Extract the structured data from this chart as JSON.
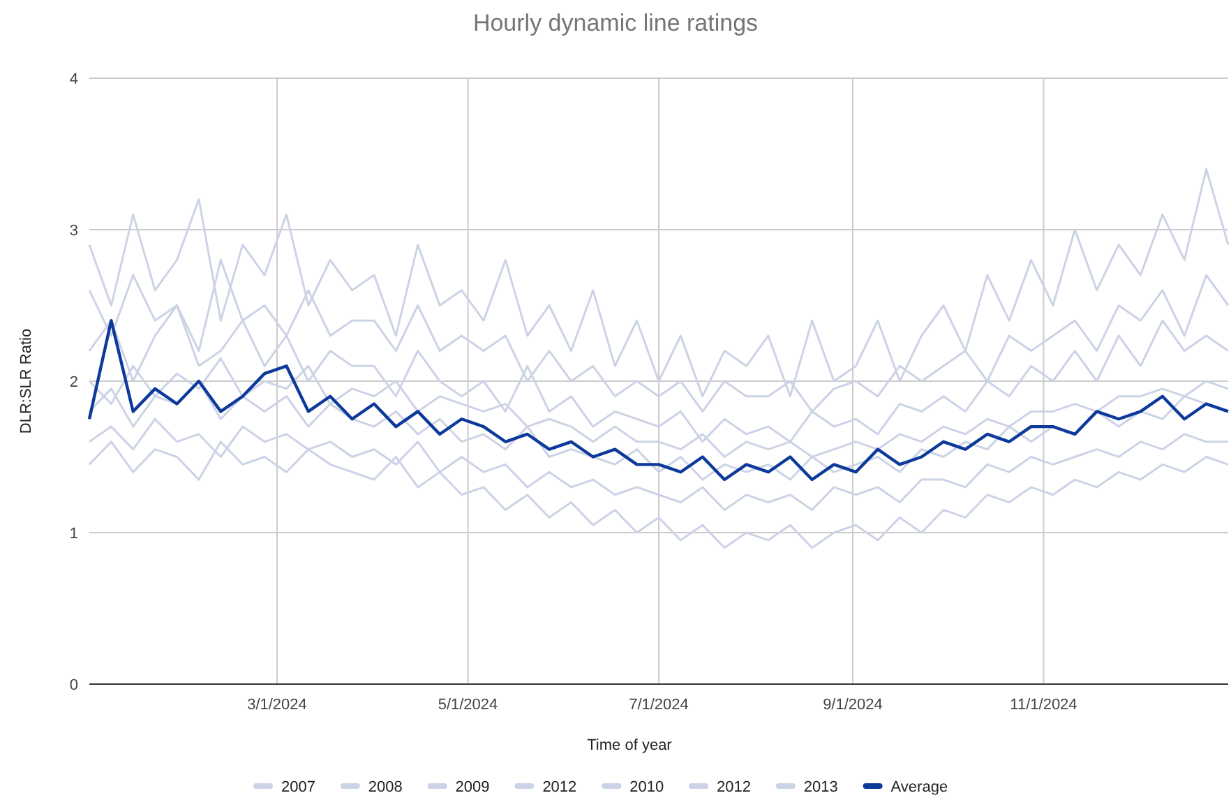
{
  "chart_data": {
    "type": "line",
    "title": "Hourly dynamic line ratings",
    "xlabel": "Time of year",
    "ylabel": "DLR:SLR Ratio",
    "x": [
      "2024-01-01",
      "2024-01-08",
      "2024-01-15",
      "2024-01-22",
      "2024-01-29",
      "2024-02-05",
      "2024-02-12",
      "2024-02-19",
      "2024-02-26",
      "2024-03-04",
      "2024-03-11",
      "2024-03-18",
      "2024-03-25",
      "2024-04-01",
      "2024-04-08",
      "2024-04-15",
      "2024-04-22",
      "2024-04-29",
      "2024-05-06",
      "2024-05-13",
      "2024-05-20",
      "2024-05-27",
      "2024-06-03",
      "2024-06-10",
      "2024-06-17",
      "2024-06-24",
      "2024-07-01",
      "2024-07-08",
      "2024-07-15",
      "2024-07-22",
      "2024-07-29",
      "2024-08-05",
      "2024-08-12",
      "2024-08-19",
      "2024-08-26",
      "2024-09-02",
      "2024-09-09",
      "2024-09-16",
      "2024-09-23",
      "2024-09-30",
      "2024-10-07",
      "2024-10-14",
      "2024-10-21",
      "2024-10-28",
      "2024-11-04",
      "2024-11-11",
      "2024-11-18",
      "2024-11-25",
      "2024-12-02",
      "2024-12-09",
      "2024-12-16",
      "2024-12-23",
      "2024-12-30"
    ],
    "series": [
      {
        "name": "2007",
        "color": "#ccd3e6",
        "values": [
          2.9,
          2.5,
          3.1,
          2.6,
          2.8,
          3.2,
          2.4,
          2.9,
          2.7,
          3.1,
          2.5,
          2.8,
          2.6,
          2.7,
          2.3,
          2.9,
          2.5,
          2.6,
          2.4,
          2.8,
          2.3,
          2.5,
          2.2,
          2.6,
          2.1,
          2.4,
          2.0,
          2.3,
          1.9,
          2.2,
          2.1,
          2.3,
          1.9,
          2.4,
          2.0,
          2.1,
          2.4,
          2.0,
          2.3,
          2.5,
          2.2,
          2.7,
          2.4,
          2.8,
          2.5,
          3.0,
          2.6,
          2.9,
          2.7,
          3.1,
          2.8,
          3.4,
          2.9
        ]
      },
      {
        "name": "2008",
        "color": "#ccd3e6",
        "values": [
          1.45,
          1.6,
          1.4,
          1.55,
          1.5,
          1.35,
          1.6,
          1.45,
          1.5,
          1.4,
          1.55,
          1.45,
          1.4,
          1.35,
          1.5,
          1.3,
          1.4,
          1.25,
          1.3,
          1.15,
          1.25,
          1.1,
          1.2,
          1.05,
          1.15,
          1.0,
          1.1,
          0.95,
          1.05,
          0.9,
          1.0,
          0.95,
          1.05,
          0.9,
          1.0,
          1.05,
          0.95,
          1.1,
          1.0,
          1.15,
          1.1,
          1.25,
          1.2,
          1.3,
          1.25,
          1.35,
          1.3,
          1.4,
          1.35,
          1.45,
          1.4,
          1.5,
          1.45
        ]
      },
      {
        "name": "2009",
        "color": "#ccd3e6",
        "values": [
          2.2,
          2.4,
          2.0,
          2.3,
          2.5,
          2.1,
          2.2,
          2.4,
          2.1,
          2.3,
          2.0,
          2.2,
          2.1,
          2.1,
          1.9,
          2.2,
          2.0,
          1.9,
          2.0,
          1.8,
          2.1,
          1.8,
          1.9,
          1.7,
          1.8,
          1.75,
          1.7,
          1.8,
          1.6,
          1.75,
          1.65,
          1.7,
          1.6,
          1.8,
          1.7,
          1.75,
          1.65,
          1.85,
          1.8,
          1.9,
          1.8,
          2.0,
          1.9,
          2.1,
          2.0,
          2.2,
          2.0,
          2.3,
          2.1,
          2.4,
          2.2,
          2.3,
          2.2
        ]
      },
      {
        "name": "2012",
        "color": "#ccd3e6",
        "values": [
          1.8,
          1.95,
          1.7,
          1.9,
          1.85,
          2.0,
          1.75,
          1.9,
          1.8,
          1.9,
          1.7,
          1.85,
          1.75,
          1.7,
          1.8,
          1.65,
          1.75,
          1.6,
          1.65,
          1.55,
          1.7,
          1.5,
          1.55,
          1.5,
          1.45,
          1.55,
          1.4,
          1.5,
          1.35,
          1.45,
          1.4,
          1.45,
          1.35,
          1.5,
          1.4,
          1.45,
          1.5,
          1.4,
          1.55,
          1.5,
          1.6,
          1.55,
          1.7,
          1.6,
          1.7,
          1.65,
          1.8,
          1.7,
          1.8,
          1.75,
          1.9,
          1.85,
          1.8
        ]
      },
      {
        "name": "2010",
        "color": "#ccd3e6",
        "values": [
          2.6,
          2.3,
          2.7,
          2.4,
          2.5,
          2.2,
          2.8,
          2.4,
          2.5,
          2.3,
          2.6,
          2.3,
          2.4,
          2.4,
          2.2,
          2.5,
          2.2,
          2.3,
          2.2,
          2.3,
          2.0,
          2.2,
          2.0,
          2.1,
          1.9,
          2.0,
          1.9,
          2.0,
          1.8,
          2.0,
          1.9,
          1.9,
          2.0,
          1.8,
          1.95,
          2.0,
          1.9,
          2.1,
          2.0,
          2.1,
          2.2,
          2.0,
          2.3,
          2.2,
          2.3,
          2.4,
          2.2,
          2.5,
          2.4,
          2.6,
          2.3,
          2.7,
          2.5
        ]
      },
      {
        "name": "2012",
        "color": "#ccd3e6",
        "values": [
          1.6,
          1.7,
          1.55,
          1.75,
          1.6,
          1.65,
          1.5,
          1.7,
          1.6,
          1.65,
          1.55,
          1.6,
          1.5,
          1.55,
          1.45,
          1.6,
          1.4,
          1.5,
          1.4,
          1.45,
          1.3,
          1.4,
          1.3,
          1.35,
          1.25,
          1.3,
          1.25,
          1.2,
          1.3,
          1.15,
          1.25,
          1.2,
          1.25,
          1.15,
          1.3,
          1.25,
          1.3,
          1.2,
          1.35,
          1.35,
          1.3,
          1.45,
          1.4,
          1.5,
          1.45,
          1.5,
          1.55,
          1.5,
          1.6,
          1.55,
          1.65,
          1.6,
          1.6
        ]
      },
      {
        "name": "2013",
        "color": "#ccd3e6",
        "values": [
          2.0,
          1.85,
          2.1,
          1.9,
          2.05,
          1.95,
          2.15,
          1.9,
          2.0,
          1.95,
          2.1,
          1.85,
          1.95,
          1.9,
          2.0,
          1.8,
          1.9,
          1.85,
          1.8,
          1.85,
          1.7,
          1.75,
          1.7,
          1.6,
          1.7,
          1.6,
          1.6,
          1.55,
          1.65,
          1.5,
          1.6,
          1.55,
          1.6,
          1.5,
          1.55,
          1.6,
          1.55,
          1.65,
          1.6,
          1.7,
          1.65,
          1.75,
          1.7,
          1.8,
          1.8,
          1.85,
          1.8,
          1.9,
          1.9,
          1.95,
          1.9,
          2.0,
          1.95
        ]
      },
      {
        "name": "Average",
        "color": "#0d3a9a",
        "values": [
          1.75,
          2.4,
          1.8,
          1.95,
          1.85,
          2.0,
          1.8,
          1.9,
          2.05,
          2.1,
          1.8,
          1.9,
          1.75,
          1.85,
          1.7,
          1.8,
          1.65,
          1.75,
          1.7,
          1.6,
          1.65,
          1.55,
          1.6,
          1.5,
          1.55,
          1.45,
          1.45,
          1.4,
          1.5,
          1.35,
          1.45,
          1.4,
          1.5,
          1.35,
          1.45,
          1.4,
          1.55,
          1.45,
          1.5,
          1.6,
          1.55,
          1.65,
          1.6,
          1.7,
          1.7,
          1.65,
          1.8,
          1.75,
          1.8,
          1.9,
          1.75,
          1.85,
          1.8
        ]
      }
    ],
    "xlim": [
      "2024-01-01",
      "2024-12-30"
    ],
    "xticks": [
      {
        "value": "2024-03-01",
        "label": "3/1/2024"
      },
      {
        "value": "2024-05-01",
        "label": "5/1/2024"
      },
      {
        "value": "2024-07-01",
        "label": "7/1/2024"
      },
      {
        "value": "2024-09-01",
        "label": "9/1/2024"
      },
      {
        "value": "2024-11-01",
        "label": "11/1/2024"
      }
    ],
    "ylim": [
      0,
      4
    ],
    "yticks": [
      0,
      1,
      2,
      3,
      4
    ],
    "grid": true,
    "legend": "bottom",
    "line_style": "solid",
    "marker": "none"
  }
}
